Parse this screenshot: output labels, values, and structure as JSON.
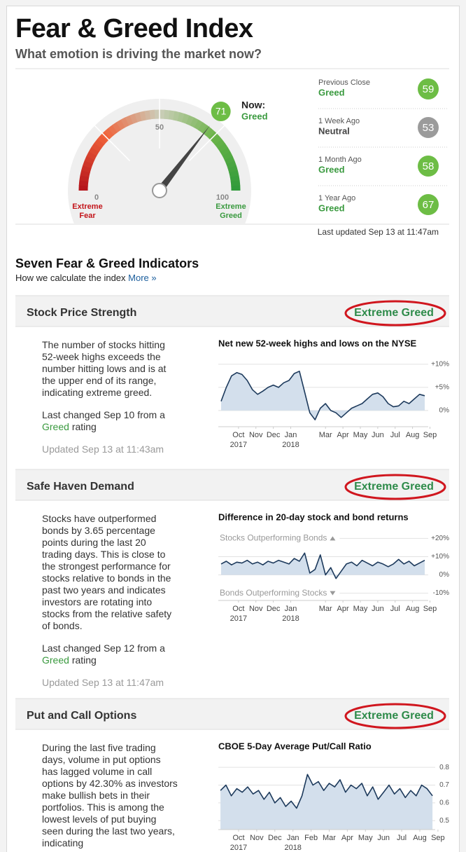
{
  "header": {
    "title": "Fear & Greed Index",
    "subtitle": "What emotion is driving the market now?"
  },
  "gauge": {
    "now_label": "Now:",
    "now_rating": "Greed",
    "value": 71,
    "color": "#6dbd45",
    "ticks": [
      0,
      50,
      100
    ],
    "min_label": "Extreme Fear",
    "max_label": "Extreme Greed"
  },
  "history": [
    {
      "label": "Previous Close",
      "rating": "Greed",
      "value": 59,
      "color": "#6dbd45",
      "rating_color": "#3a9a3f"
    },
    {
      "label": "1 Week Ago",
      "rating": "Neutral",
      "value": 53,
      "color": "#9b9b9b",
      "rating_color": "#444444"
    },
    {
      "label": "1 Month Ago",
      "rating": "Greed",
      "value": 58,
      "color": "#6dbd45",
      "rating_color": "#3a9a3f"
    },
    {
      "label": "1 Year Ago",
      "rating": "Greed",
      "value": 67,
      "color": "#6dbd45",
      "rating_color": "#3a9a3f"
    }
  ],
  "last_updated": "Last updated Sep 13 at 11:47am",
  "section": {
    "title": "Seven Fear & Greed Indicators",
    "subtitle": "How we calculate the index",
    "link": "More »"
  },
  "indicators": [
    {
      "name": "Stock Price Strength",
      "rating": "Extreme Greed",
      "text": "The number of stocks hitting 52-week highs exceeds the number hitting lows and is at the upper end of its range, indicating extreme greed.",
      "changed": "Last changed Sep 10 from a",
      "changed_rating": "Greed",
      "changed_suffix": "rating",
      "updated": "Updated Sep 13 at 11:43am",
      "chart": {
        "type": "area",
        "title": "Net new 52-week highs and lows on the NYSE",
        "xlim": [
          -0.16,
          11.9
        ],
        "ylim": [
          -3.5,
          11.5
        ],
        "yticks": [
          {
            "value": 10,
            "label": "+10%"
          },
          {
            "value": 5,
            "label": "+5%"
          },
          {
            "value": 0,
            "label": "0%"
          }
        ],
        "xticks": [
          {
            "value": 1,
            "label": "Oct",
            "year": "2017"
          },
          {
            "value": 2,
            "label": "Nov"
          },
          {
            "value": 3,
            "label": "Dec"
          },
          {
            "value": 4,
            "label": "Jan",
            "year": "2018"
          },
          {
            "value": 6,
            "label": "Mar"
          },
          {
            "value": 7,
            "label": "Apr"
          },
          {
            "value": 8,
            "label": "May"
          },
          {
            "value": 9,
            "label": "Jun"
          },
          {
            "value": 10,
            "label": "Jul"
          },
          {
            "value": 11,
            "label": "Aug"
          },
          {
            "value": 12,
            "label": "Sep"
          }
        ],
        "color": "#1d3a5c",
        "fill": "#d3dfec",
        "grid": true,
        "x": [
          0,
          0.3,
          0.6,
          0.9,
          1.2,
          1.5,
          1.8,
          2.1,
          2.4,
          2.7,
          3.0,
          3.3,
          3.6,
          3.9,
          4.2,
          4.5,
          4.8,
          5.1,
          5.4,
          5.7,
          6.0,
          6.3,
          6.6,
          6.9,
          7.2,
          7.5,
          7.8,
          8.1,
          8.4,
          8.7,
          9.0,
          9.3,
          9.6,
          9.9,
          10.2,
          10.5,
          10.8,
          11.1,
          11.4,
          11.7
        ],
        "values": [
          2,
          5,
          7.5,
          8.2,
          7.8,
          6.5,
          4.5,
          3.5,
          4.2,
          5,
          5.5,
          5,
          6,
          6.5,
          8,
          8.5,
          4,
          -0.5,
          -2,
          0.5,
          1.5,
          0,
          -0.5,
          -1.5,
          -0.5,
          0.5,
          1,
          1.5,
          2.5,
          3.5,
          3.8,
          3,
          1.5,
          0.8,
          1,
          2,
          1.5,
          2.5,
          3.5,
          3.2
        ]
      }
    },
    {
      "name": "Safe Haven Demand",
      "rating": "Extreme Greed",
      "text": "Stocks have outperformed bonds by 3.65 percentage points during the last 20 trading days. This is close to the strongest performance for stocks relative to bonds in the past two years and indicates investors are rotating into stocks from the relative safety of bonds.",
      "changed": "Last changed Sep 12 from a",
      "changed_rating": "Greed",
      "changed_suffix": "rating",
      "updated": "Updated Sep 13 at 11:47am",
      "chart": {
        "type": "area",
        "title": "Difference in 20-day stock and bond returns",
        "upper_label": "Stocks Outperforming Bonds",
        "lower_label": "Bonds Outperforming Stocks",
        "xlim": [
          -0.16,
          11.9
        ],
        "ylim": [
          -14,
          24
        ],
        "yticks": [
          {
            "value": 20,
            "label": "+20%"
          },
          {
            "value": 10,
            "label": "+10%"
          },
          {
            "value": 0,
            "label": "0%"
          },
          {
            "value": -10,
            "label": "-10%"
          }
        ],
        "xticks": [
          {
            "value": 1,
            "label": "Oct",
            "year": "2017"
          },
          {
            "value": 2,
            "label": "Nov"
          },
          {
            "value": 3,
            "label": "Dec"
          },
          {
            "value": 4,
            "label": "Jan",
            "year": "2018"
          },
          {
            "value": 6,
            "label": "Mar"
          },
          {
            "value": 7,
            "label": "Apr"
          },
          {
            "value": 8,
            "label": "May"
          },
          {
            "value": 9,
            "label": "Jun"
          },
          {
            "value": 10,
            "label": "Jul"
          },
          {
            "value": 11,
            "label": "Aug"
          },
          {
            "value": 12,
            "label": "Sep"
          }
        ],
        "color": "#1d3a5c",
        "fill": "#d3dfec",
        "grid": true,
        "x": [
          0,
          0.3,
          0.6,
          0.9,
          1.2,
          1.5,
          1.8,
          2.1,
          2.4,
          2.7,
          3.0,
          3.3,
          3.6,
          3.9,
          4.2,
          4.5,
          4.8,
          5.1,
          5.4,
          5.7,
          6.0,
          6.3,
          6.6,
          6.9,
          7.2,
          7.5,
          7.8,
          8.1,
          8.4,
          8.7,
          9.0,
          9.3,
          9.6,
          9.9,
          10.2,
          10.5,
          10.8,
          11.1,
          11.4,
          11.7
        ],
        "values": [
          6,
          7.5,
          5.5,
          7,
          6.5,
          8,
          6,
          7,
          5.5,
          7.5,
          6.5,
          8,
          7,
          6,
          9,
          7.5,
          12,
          1,
          3,
          11,
          0,
          4,
          -2,
          2,
          6,
          7,
          5,
          8,
          6.5,
          5,
          7,
          6,
          4.5,
          6,
          8.5,
          6,
          7.5,
          5,
          6.5,
          8
        ]
      }
    },
    {
      "name": "Put and Call Options",
      "rating": "Extreme Greed",
      "text": "During the last five trading days, volume in put options has lagged volume in call options by 42.30% as investors make bullish bets in their portfolios. This is among the lowest levels of put buying seen during the last two years, indicating",
      "chart": {
        "type": "area",
        "title": "CBOE 5-Day Average Put/Call Ratio",
        "xlim": [
          -0.12,
          11.85
        ],
        "ylim": [
          0.45,
          0.84
        ],
        "yticks": [
          0.8,
          0.7,
          0.6,
          0.5
        ],
        "xticks": [
          {
            "value": 1,
            "label": "Oct",
            "year": "2017"
          },
          {
            "value": 2,
            "label": "Nov"
          },
          {
            "value": 3,
            "label": "Dec"
          },
          {
            "value": 4,
            "label": "Jan",
            "year": "2018"
          },
          {
            "value": 5,
            "label": "Feb"
          },
          {
            "value": 6,
            "label": "Mar"
          },
          {
            "value": 7,
            "label": "Apr"
          },
          {
            "value": 8,
            "label": "May"
          },
          {
            "value": 9,
            "label": "Jun"
          },
          {
            "value": 10,
            "label": "Jul"
          },
          {
            "value": 11,
            "label": "Aug"
          },
          {
            "value": 12,
            "label": "Sep"
          }
        ],
        "color": "#1d3a5c",
        "fill": "#d3dfec",
        "grid": true,
        "x": [
          0,
          0.3,
          0.6,
          0.9,
          1.2,
          1.5,
          1.8,
          2.1,
          2.4,
          2.7,
          3.0,
          3.3,
          3.6,
          3.9,
          4.2,
          4.5,
          4.8,
          5.1,
          5.4,
          5.7,
          6.0,
          6.3,
          6.6,
          6.9,
          7.2,
          7.5,
          7.8,
          8.1,
          8.4,
          8.7,
          9.0,
          9.3,
          9.6,
          9.9,
          10.2,
          10.5,
          10.8,
          11.1,
          11.4,
          11.7
        ],
        "values": [
          0.67,
          0.7,
          0.64,
          0.68,
          0.66,
          0.69,
          0.65,
          0.67,
          0.62,
          0.66,
          0.6,
          0.63,
          0.58,
          0.61,
          0.57,
          0.64,
          0.76,
          0.7,
          0.72,
          0.67,
          0.71,
          0.69,
          0.73,
          0.66,
          0.7,
          0.68,
          0.71,
          0.64,
          0.69,
          0.62,
          0.66,
          0.7,
          0.65,
          0.68,
          0.63,
          0.67,
          0.64,
          0.7,
          0.68,
          0.64
        ]
      }
    }
  ]
}
